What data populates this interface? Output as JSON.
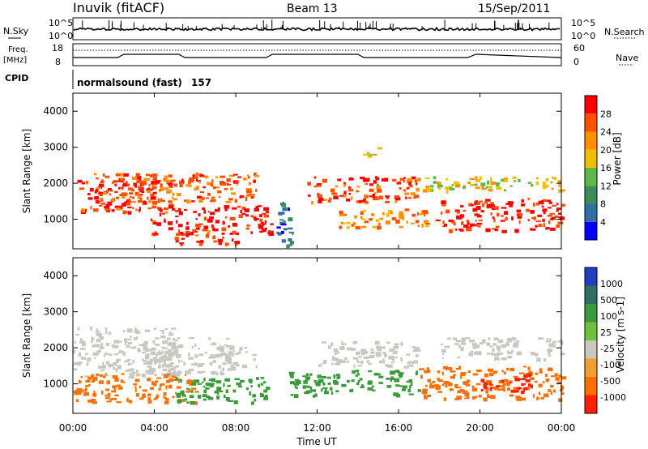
{
  "header": {
    "station": "Inuvik (fitACF)",
    "beam": "Beam 13",
    "date": "15/Sep/2011"
  },
  "noise_panel": {
    "left_label": "N.Sky",
    "right_label": "N.Search",
    "left_ticks": [
      "10^5",
      "10^0"
    ],
    "right_ticks": [
      "10^5",
      "10^0"
    ]
  },
  "freq_panel": {
    "left_label_1": "Freq.",
    "left_label_2": "[MHz]",
    "right_label": "Nave",
    "left_ticks": [
      "18",
      "8"
    ],
    "right_ticks": [
      "60",
      "0"
    ]
  },
  "cpid": {
    "label": "CPID",
    "mode": "normalsound (fast)",
    "number": "157"
  },
  "x_axis": {
    "label": "Time UT",
    "ticks": [
      "00:00",
      "04:00",
      "08:00",
      "12:00",
      "16:00",
      "20:00",
      "00:00"
    ]
  },
  "power_panel": {
    "ylabel": "Slant Range [km]",
    "yticks": [
      "4000",
      "3000",
      "2000",
      "1000"
    ],
    "colorbar_label": "Power [dB]",
    "colorbar_ticks": [
      "28",
      "24",
      "20",
      "16",
      "12",
      "8",
      "4"
    ]
  },
  "velocity_panel": {
    "ylabel": "Slant Range [km]",
    "yticks": [
      "4000",
      "3000",
      "2000",
      "1000"
    ],
    "colorbar_label": "Velocity [m s-1]",
    "colorbar_ticks": [
      "1000",
      "500",
      "100",
      "25",
      "-25",
      "-100",
      "-500",
      "-1000"
    ]
  },
  "colors": {
    "power_scale": [
      "#0000ff",
      "#2f6fa6",
      "#3c8c5a",
      "#5fb84a",
      "#f0c000",
      "#ff9000",
      "#ff5000",
      "#ff0000"
    ],
    "velocity_scale": [
      "#2040c0",
      "#2f6f66",
      "#3c9a3c",
      "#70c040",
      "#c8c8c0",
      "#f0a030",
      "#ff7000",
      "#ff2000"
    ]
  },
  "chart_data": [
    {
      "type": "heatmap",
      "title": "Power",
      "x_range_hours": [
        0,
        24
      ],
      "ylim": [
        180,
        4500
      ],
      "series": [
        {
          "hour_start": 0.2,
          "hour_end": 4.8,
          "range_start": 1200,
          "range_end": 2200,
          "value_db": 26
        },
        {
          "hour_start": 3.8,
          "hour_end": 9.8,
          "range_start": 600,
          "range_end": 1400,
          "value_db": 28
        },
        {
          "hour_start": 1.0,
          "hour_end": 9.0,
          "range_start": 1500,
          "range_end": 2300,
          "value_db": 24
        },
        {
          "hour_start": 5.0,
          "hour_end": 8.0,
          "range_start": 300,
          "range_end": 700,
          "value_db": 26
        },
        {
          "hour_start": 11.5,
          "hour_end": 17.0,
          "range_start": 1500,
          "range_end": 2200,
          "value_db": 25
        },
        {
          "hour_start": 13.0,
          "hour_end": 17.5,
          "range_start": 800,
          "range_end": 1300,
          "value_db": 22
        },
        {
          "hour_start": 17.8,
          "hour_end": 24.0,
          "range_start": 700,
          "range_end": 1600,
          "value_db": 27
        },
        {
          "hour_start": 17.0,
          "hour_end": 24.0,
          "range_start": 1800,
          "range_end": 2200,
          "value_db": 18
        },
        {
          "hour_start": 14.2,
          "hour_end": 15.0,
          "range_start": 2800,
          "range_end": 3100,
          "value_db": 18
        },
        {
          "hour_start": 10.0,
          "hour_end": 10.8,
          "range_start": 200,
          "range_end": 1500,
          "value_db": 8
        }
      ]
    },
    {
      "type": "heatmap",
      "title": "Velocity",
      "x_range_hours": [
        0,
        24
      ],
      "ylim": [
        180,
        4500
      ],
      "series": [
        {
          "hour_start": 0.0,
          "hour_end": 5.0,
          "range_start": 1200,
          "range_end": 2600,
          "value_ms": 0
        },
        {
          "hour_start": 0.0,
          "hour_end": 6.0,
          "range_start": 500,
          "range_end": 1300,
          "value_ms": -150
        },
        {
          "hour_start": 3.5,
          "hour_end": 8.0,
          "range_start": 1300,
          "range_end": 2300,
          "value_ms": 0
        },
        {
          "hour_start": 5.0,
          "hour_end": 9.5,
          "range_start": 500,
          "range_end": 1200,
          "value_ms": 200
        },
        {
          "hour_start": 7.0,
          "hour_end": 9.0,
          "range_start": 1500,
          "range_end": 2100,
          "value_ms": 0
        },
        {
          "hour_start": 10.5,
          "hour_end": 17.0,
          "range_start": 700,
          "range_end": 1400,
          "value_ms": 150
        },
        {
          "hour_start": 12.0,
          "hour_end": 17.0,
          "range_start": 1500,
          "range_end": 2200,
          "value_ms": 0
        },
        {
          "hour_start": 17.0,
          "hour_end": 24.0,
          "range_start": 600,
          "range_end": 1500,
          "value_ms": -200
        },
        {
          "hour_start": 18.0,
          "hour_end": 24.0,
          "range_start": 1700,
          "range_end": 2300,
          "value_ms": 0
        },
        {
          "hour_start": 20.0,
          "hour_end": 22.5,
          "range_start": 800,
          "range_end": 1300,
          "value_ms": -800
        }
      ]
    }
  ]
}
